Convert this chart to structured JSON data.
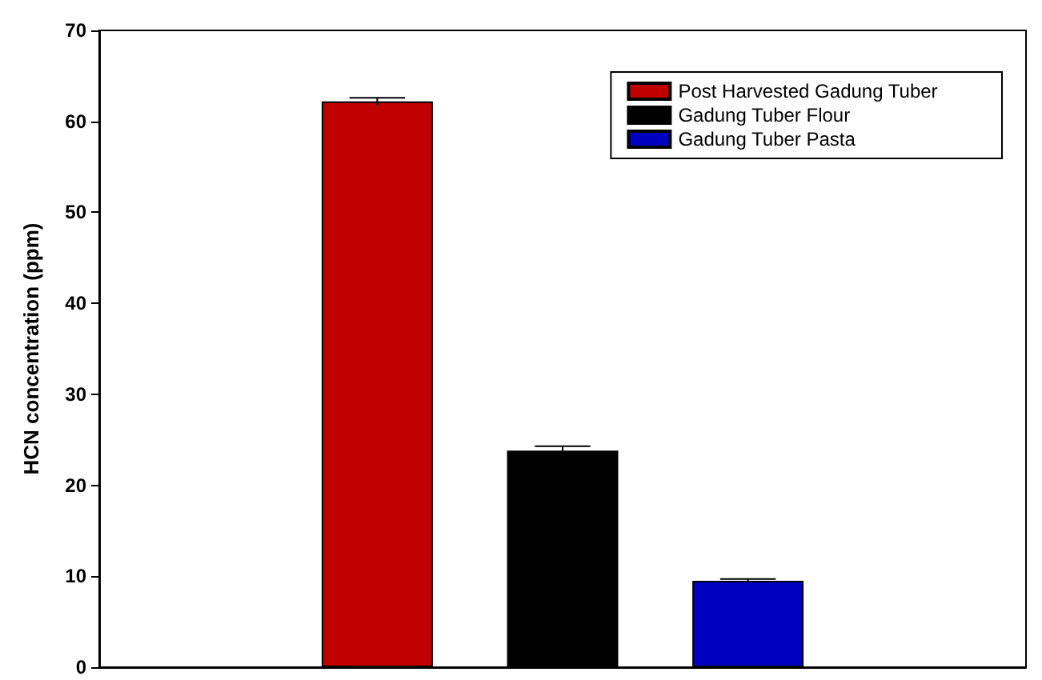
{
  "chart_data": {
    "type": "bar",
    "ylabel": "HCN concentration (ppm)",
    "categories": [
      null,
      null,
      null,
      null,
      null
    ],
    "series": [
      {
        "name": "Post Harvested Gadung Tuber",
        "color": "#c00000",
        "values": [
          null,
          62.2,
          null,
          null,
          null
        ],
        "errors": [
          null,
          0.4,
          null,
          null,
          null
        ]
      },
      {
        "name": "Gadung Tuber Flour",
        "color": "#000000",
        "values": [
          null,
          null,
          23.8,
          null,
          null
        ],
        "errors": [
          null,
          null,
          0.5,
          null,
          null
        ]
      },
      {
        "name": "Gadung Tuber Pasta",
        "color": "#0000c0",
        "values": [
          null,
          null,
          null,
          9.5,
          null
        ],
        "errors": [
          null,
          null,
          null,
          0.2,
          null
        ]
      }
    ],
    "ylim": [
      0,
      70
    ],
    "yticks": [
      0,
      10,
      20,
      30,
      40,
      50,
      60,
      70
    ],
    "grid": false,
    "legend": "top right"
  }
}
